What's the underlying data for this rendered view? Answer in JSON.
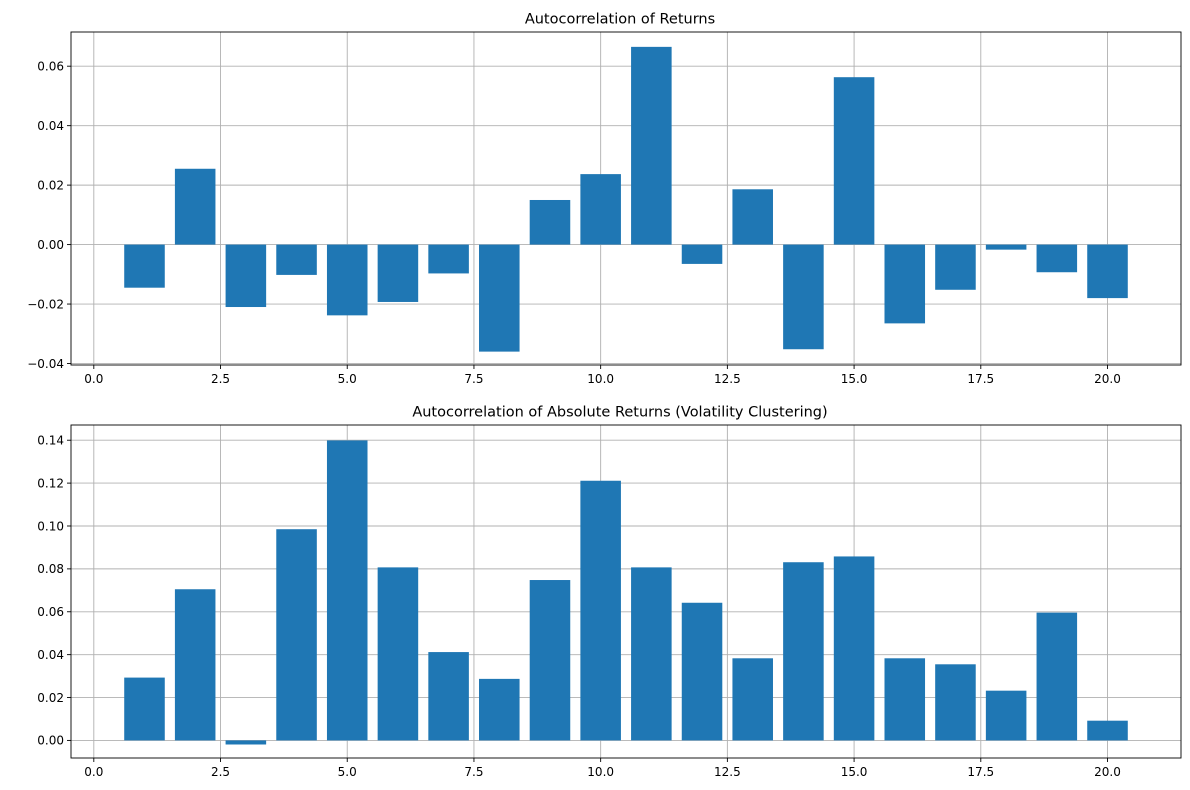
{
  "chart_data": [
    {
      "type": "bar",
      "title": "Autocorrelation of Returns",
      "xlabel": "",
      "ylabel": "",
      "xlim": [
        -0.45,
        21.45
      ],
      "ylim": [
        -0.0405,
        0.0715
      ],
      "grid": true,
      "color": "#1f77b4",
      "x": [
        1,
        2,
        3,
        4,
        5,
        6,
        7,
        8,
        9,
        10,
        11,
        12,
        13,
        14,
        15,
        16,
        17,
        18,
        19,
        20
      ],
      "values": [
        -0.0145,
        0.0255,
        -0.021,
        -0.0102,
        -0.0238,
        -0.0193,
        -0.0097,
        -0.036,
        0.015,
        0.0237,
        0.0665,
        -0.0065,
        0.0186,
        -0.0352,
        0.0563,
        -0.0265,
        -0.0152,
        -0.0017,
        -0.0093,
        -0.018
      ],
      "xticks": [
        0.0,
        2.5,
        5.0,
        7.5,
        10.0,
        12.5,
        15.0,
        17.5,
        20.0
      ],
      "xtick_labels": [
        "0.0",
        "2.5",
        "5.0",
        "7.5",
        "10.0",
        "12.5",
        "15.0",
        "17.5",
        "20.0"
      ],
      "yticks": [
        -0.04,
        -0.02,
        0.0,
        0.02,
        0.04,
        0.06
      ],
      "ytick_labels": [
        "−0.04",
        "−0.02",
        "0.00",
        "0.02",
        "0.04",
        "0.06"
      ]
    },
    {
      "type": "bar",
      "title": "Autocorrelation of Absolute Returns (Volatility Clustering)",
      "xlabel": "",
      "ylabel": "",
      "xlim": [
        -0.45,
        21.45
      ],
      "ylim": [
        -0.0082,
        0.1471
      ],
      "grid": true,
      "color": "#1f77b4",
      "x": [
        1,
        2,
        3,
        4,
        5,
        6,
        7,
        8,
        9,
        10,
        11,
        12,
        13,
        14,
        15,
        16,
        17,
        18,
        19,
        20
      ],
      "values": [
        0.0293,
        0.0705,
        -0.0019,
        0.0985,
        0.1399,
        0.0807,
        0.0412,
        0.0287,
        0.0748,
        0.1211,
        0.0807,
        0.0642,
        0.0383,
        0.0831,
        0.0858,
        0.0383,
        0.0355,
        0.0232,
        0.0596,
        0.0092
      ],
      "xticks": [
        0.0,
        2.5,
        5.0,
        7.5,
        10.0,
        12.5,
        15.0,
        17.5,
        20.0
      ],
      "xtick_labels": [
        "0.0",
        "2.5",
        "5.0",
        "7.5",
        "10.0",
        "12.5",
        "15.0",
        "17.5",
        "20.0"
      ],
      "yticks": [
        0.0,
        0.02,
        0.04,
        0.06,
        0.08,
        0.1,
        0.12,
        0.14
      ],
      "ytick_labels": [
        "0.00",
        "0.02",
        "0.04",
        "0.06",
        "0.08",
        "0.10",
        "0.12",
        "0.14"
      ]
    }
  ]
}
